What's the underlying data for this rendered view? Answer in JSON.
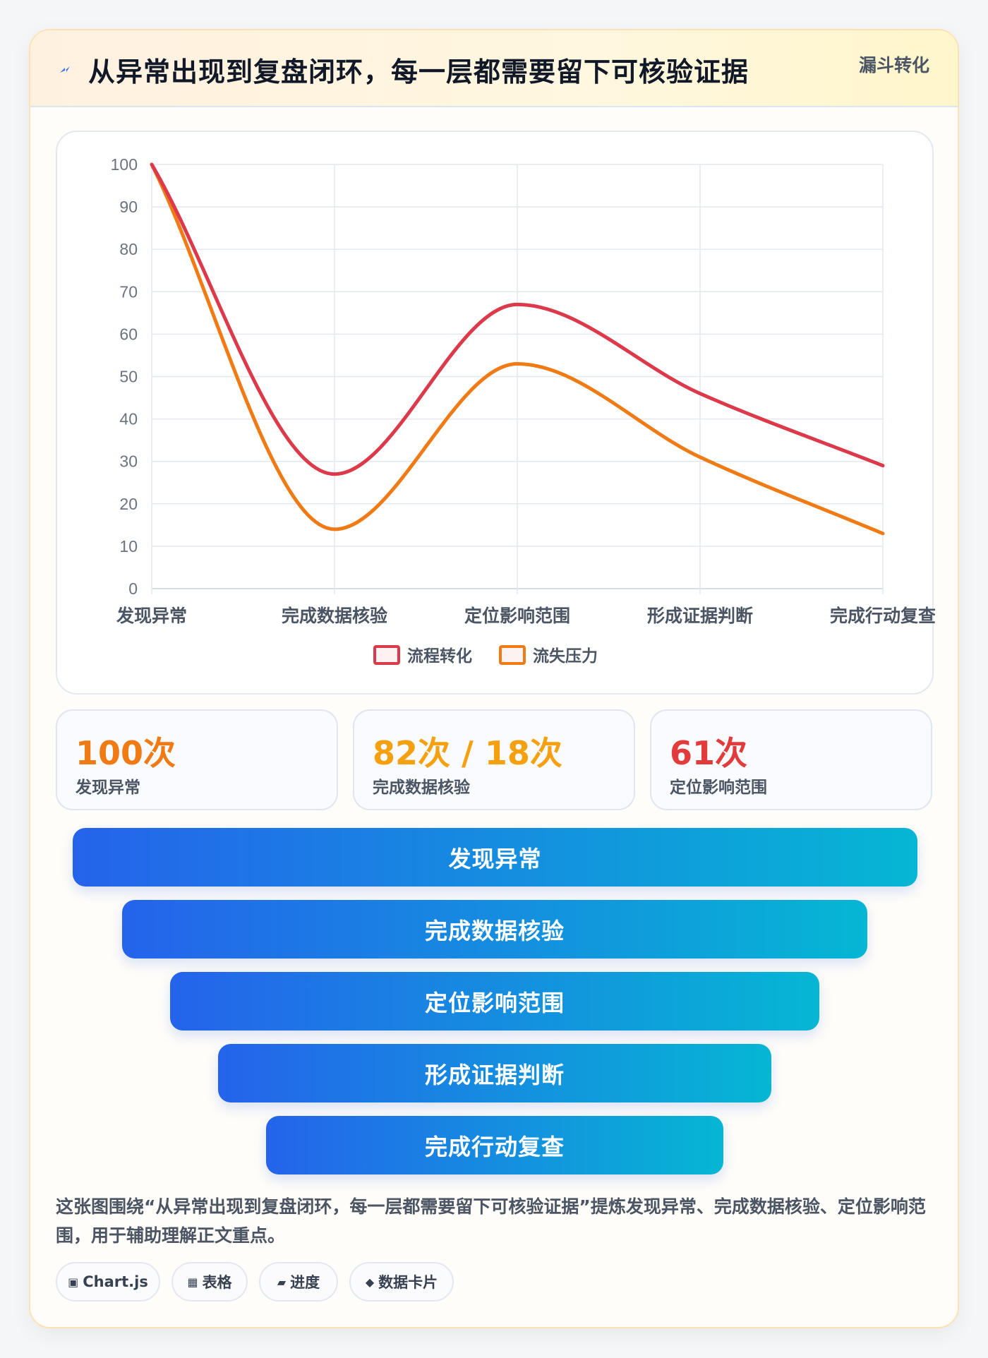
{
  "header": {
    "title": "从异常出现到复盘闭环，每一层都需要留下可核验证据",
    "tag": "漏斗转化"
  },
  "chart_data": {
    "type": "line",
    "categories": [
      "发现异常",
      "完成数据核验",
      "定位影响范围",
      "形成证据判断",
      "完成行动复查"
    ],
    "series": [
      {
        "name": "流程转化",
        "values": [
          100,
          27,
          67,
          46,
          29
        ],
        "color": "#dc3a4a"
      },
      {
        "name": "流失压力",
        "values": [
          100,
          14,
          53,
          31,
          13
        ],
        "color": "#f07a14"
      }
    ],
    "y_ticks": [
      0,
      10,
      20,
      30,
      40,
      50,
      60,
      70,
      80,
      90,
      100
    ],
    "ylim": [
      0,
      100
    ],
    "grid": true,
    "legend_position": "bottom",
    "curve": "smooth"
  },
  "stats": [
    {
      "value": "100次",
      "label": "发现异常",
      "color": "#f07a14"
    },
    {
      "value": "82次 / 18次",
      "label": "完成数据核验",
      "color": "#f5a00e"
    },
    {
      "value": "61次",
      "label": "定位影响范围",
      "color": "#e23b3b"
    }
  ],
  "funnel": {
    "items": [
      "发现异常",
      "完成数据核验",
      "定位影响范围",
      "形成证据判断",
      "完成行动复查"
    ]
  },
  "description": "这张图围绕“从异常出现到复盘闭环，每一层都需要留下可核验证据”提炼发现异常、完成数据核验、定位影响范围，用于辅助理解正文重点。",
  "chips": [
    {
      "icon": "▣",
      "icon_name": "chart-icon",
      "label": "Chart.js"
    },
    {
      "icon": "▦",
      "icon_name": "table-icon",
      "label": "表格"
    },
    {
      "icon": "▰",
      "icon_name": "progress-icon",
      "label": "进度"
    },
    {
      "icon": "◆",
      "icon_name": "diamond-icon",
      "label": "数据卡片"
    }
  ]
}
